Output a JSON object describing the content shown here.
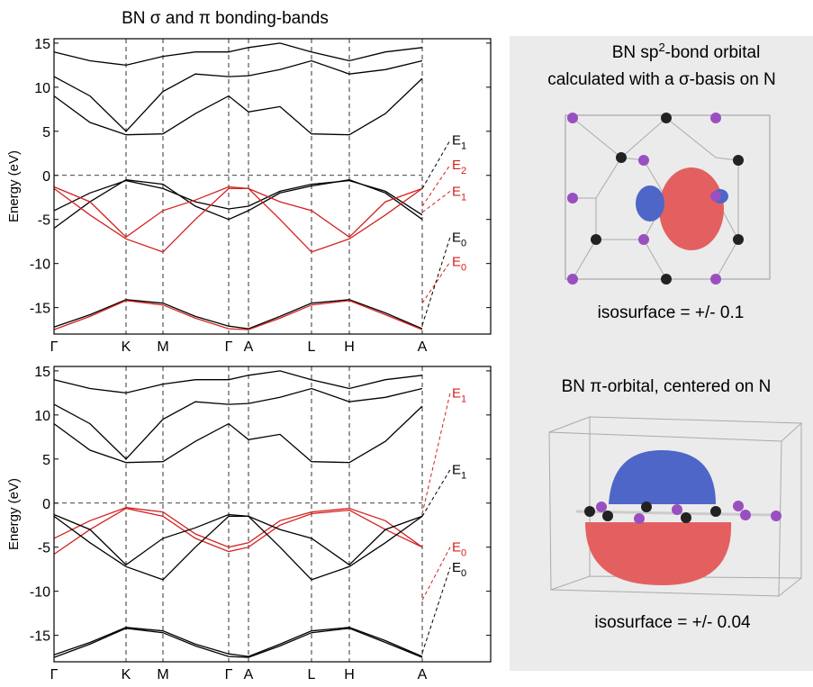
{
  "chart_data": [
    {
      "type": "line",
      "title": "BN σ and π bonding-bands",
      "y_label": "Energy (eV)",
      "x": [
        0,
        40,
        80,
        121,
        157,
        194,
        216,
        251,
        286,
        328,
        368,
        409
      ],
      "xlim": [
        0,
        485
      ],
      "ylim": [
        -18,
        15.5
      ],
      "xticks": [
        {
          "value": 0,
          "label": "Γ"
        },
        {
          "value": 80,
          "label": "K"
        },
        {
          "value": 121,
          "label": "M"
        },
        {
          "value": 194,
          "label": "Γ"
        },
        {
          "value": 216,
          "label": "A"
        },
        {
          "value": 286,
          "label": "L"
        },
        {
          "value": 328,
          "label": "H"
        },
        {
          "value": 409,
          "label": "A"
        }
      ],
      "yticks": [
        -15,
        -10,
        -5,
        0,
        5,
        10,
        15
      ],
      "grid": true,
      "zero_line": true,
      "series": [
        {
          "color": "#000000",
          "values": [
            -17.2,
            -15.8,
            -14.1,
            -14.5,
            -16.0,
            -17.1,
            -17.4,
            -16.0,
            -14.5,
            -14.1,
            -15.6,
            -17.4
          ]
        },
        {
          "color": "#d42020",
          "values": [
            -17.5,
            -16.0,
            -14.2,
            -14.7,
            -16.2,
            -17.4,
            -17.5,
            -16.2,
            -14.7,
            -14.2,
            -15.8,
            -17.5
          ]
        },
        {
          "color": "#000000",
          "values": [
            -6.0,
            -3.0,
            -0.5,
            -1.0,
            -3.5,
            -5.0,
            -4.0,
            -2.0,
            -1.2,
            -0.5,
            -2.0,
            -5.0
          ]
        },
        {
          "color": "#000000",
          "values": [
            -4.0,
            -2.0,
            -0.6,
            -1.5,
            -3.0,
            -3.8,
            -3.5,
            -1.8,
            -1.0,
            -0.6,
            -1.8,
            -4.5
          ]
        },
        {
          "color": "#d42020",
          "values": [
            -1.5,
            -4.5,
            -7.2,
            -8.7,
            -5.0,
            -1.5,
            -1.5,
            -5.0,
            -8.7,
            -7.2,
            -4.5,
            -1.5
          ]
        },
        {
          "color": "#d42020",
          "values": [
            -1.3,
            -3.0,
            -7.0,
            -4.0,
            -2.8,
            -1.3,
            -1.5,
            -3.0,
            -4.0,
            -7.0,
            -3.0,
            -1.5
          ]
        },
        {
          "color": "#000000",
          "values": [
            9.0,
            6.0,
            4.6,
            4.7,
            7.0,
            9.0,
            7.2,
            7.8,
            4.7,
            4.6,
            7.0,
            11.0
          ]
        },
        {
          "color": "#000000",
          "values": [
            11.2,
            9.0,
            5.0,
            9.5,
            11.5,
            11.2,
            11.3,
            12.0,
            13.0,
            11.5,
            12.0,
            13.0
          ]
        },
        {
          "color": "#000000",
          "values": [
            14.0,
            13.0,
            12.5,
            13.5,
            14.0,
            14.0,
            14.5,
            15.0,
            14.0,
            13.0,
            14.0,
            14.5
          ]
        }
      ],
      "annotations": [
        {
          "text": "E",
          "sub": "1",
          "color": "#000000"
        },
        {
          "text": "E",
          "sub": "2",
          "color": "#d42020"
        },
        {
          "text": "E",
          "sub": "1",
          "color": "#d42020"
        },
        {
          "text": "E",
          "sub": "0",
          "color": "#000000"
        },
        {
          "text": "E",
          "sub": "0",
          "color": "#d42020"
        }
      ]
    },
    {
      "type": "line",
      "y_label": "Energy (eV)",
      "x": [
        0,
        40,
        80,
        121,
        157,
        194,
        216,
        251,
        286,
        328,
        368,
        409
      ],
      "xlim": [
        0,
        485
      ],
      "ylim": [
        -18,
        15.5
      ],
      "xticks": [
        {
          "value": 0,
          "label": "Γ"
        },
        {
          "value": 80,
          "label": "K"
        },
        {
          "value": 121,
          "label": "M"
        },
        {
          "value": 194,
          "label": "Γ"
        },
        {
          "value": 216,
          "label": "A"
        },
        {
          "value": 286,
          "label": "L"
        },
        {
          "value": 328,
          "label": "H"
        },
        {
          "value": 409,
          "label": "A"
        }
      ],
      "yticks": [
        -15,
        -10,
        -5,
        0,
        5,
        10,
        15
      ],
      "grid": true,
      "zero_line": true,
      "series": [
        {
          "color": "#000000",
          "values": [
            -17.2,
            -15.8,
            -14.1,
            -14.5,
            -16.0,
            -17.1,
            -17.4,
            -16.0,
            -14.5,
            -14.1,
            -15.6,
            -17.4
          ]
        },
        {
          "color": "#000000",
          "values": [
            -17.5,
            -16.0,
            -14.2,
            -14.7,
            -16.2,
            -17.4,
            -17.5,
            -16.2,
            -14.7,
            -14.2,
            -15.8,
            -17.5
          ]
        },
        {
          "color": "#d42020",
          "values": [
            -4.0,
            -2.0,
            -0.5,
            -1.0,
            -3.5,
            -5.0,
            -4.5,
            -2.0,
            -1.0,
            -0.6,
            -2.0,
            -5.0
          ]
        },
        {
          "color": "#d42020",
          "values": [
            -5.8,
            -3.0,
            -0.6,
            -1.5,
            -4.0,
            -5.5,
            -5.0,
            -2.5,
            -1.2,
            -0.8,
            -3.0,
            -5.0
          ]
        },
        {
          "color": "#000000",
          "values": [
            -1.5,
            -4.5,
            -7.2,
            -8.7,
            -5.0,
            -1.5,
            -1.5,
            -5.0,
            -8.7,
            -7.2,
            -4.5,
            -1.5
          ]
        },
        {
          "color": "#000000",
          "values": [
            -1.3,
            -3.0,
            -7.0,
            -4.0,
            -2.8,
            -1.3,
            -1.5,
            -3.0,
            -4.0,
            -7.0,
            -3.0,
            -1.5
          ]
        },
        {
          "color": "#000000",
          "values": [
            9.0,
            6.0,
            4.6,
            4.7,
            7.0,
            9.0,
            7.2,
            7.8,
            4.7,
            4.6,
            7.0,
            11.0
          ]
        },
        {
          "color": "#000000",
          "values": [
            11.2,
            9.0,
            5.0,
            9.5,
            11.5,
            11.2,
            11.3,
            12.0,
            13.0,
            11.5,
            12.0,
            13.0
          ]
        },
        {
          "color": "#000000",
          "values": [
            14.0,
            13.0,
            12.5,
            13.5,
            14.0,
            14.0,
            14.5,
            15.0,
            14.0,
            13.0,
            14.0,
            14.5
          ]
        }
      ],
      "annotations": [
        {
          "text": "E",
          "sub": "1",
          "color": "#d42020"
        },
        {
          "text": "E",
          "sub": "1",
          "color": "#000000"
        },
        {
          "text": "E",
          "sub": "0",
          "color": "#d42020"
        },
        {
          "text": "E",
          "sub": "0",
          "color": "#000000"
        }
      ]
    }
  ],
  "right_panel": {
    "orbital1": {
      "title_a": "BN sp",
      "title_sup": "2",
      "title_b": "-bond orbital",
      "title_line2": "calculated with a σ-basis on N",
      "caption": "isosurface = +/- 0.1"
    },
    "orbital2": {
      "title": "BN π-orbital, centered on N",
      "caption": "isosurface = +/- 0.04"
    }
  }
}
